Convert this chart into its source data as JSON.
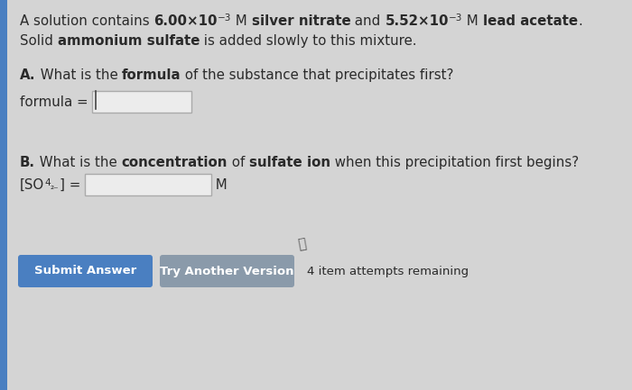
{
  "bg_color": "#d4d4d4",
  "left_bar_color": "#4a7fc1",
  "text_color": "#2a2a2a",
  "btn1_color": "#4a7fc1",
  "btn2_color": "#8a9aaa",
  "btn_text_color": "#ffffff",
  "input_bg": "#ececec",
  "input_border": "#aaaaaa",
  "attempts_text": "4 item attempts remaining",
  "btn1_text": "Submit Answer",
  "btn2_text": "Try Another Version"
}
